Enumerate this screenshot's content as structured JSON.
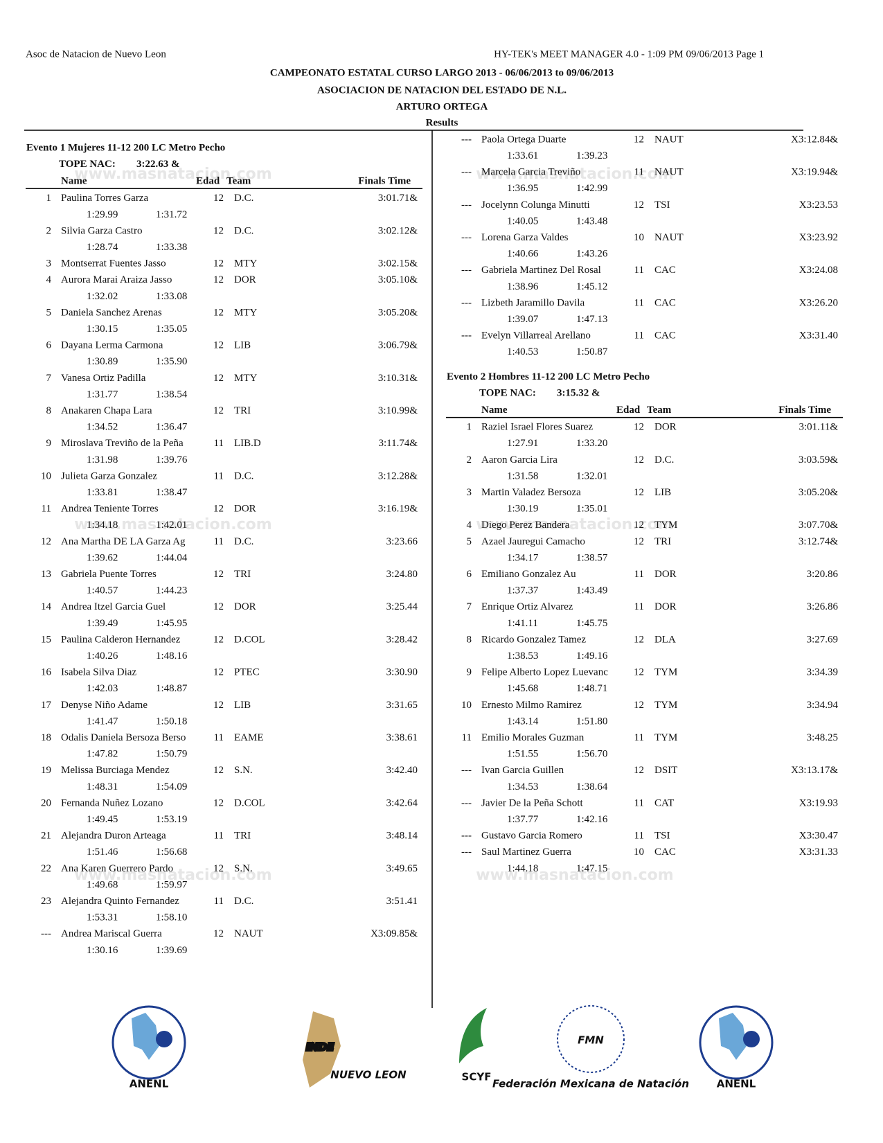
{
  "header": {
    "left": "Asoc de Natacion de Nuevo Leon",
    "right": "HY-TEK's MEET MANAGER 4.0 - 1:09 PM  09/06/2013  Page 1",
    "title": "CAMPEONATO ESTATAL CURSO LARGO 2013 - 06/06/2013 to 09/06/2013",
    "subtitle": "ASOCIACION DE NATACION DEL ESTADO DE N.L.",
    "venue": "ARTURO ORTEGA",
    "section": "Results"
  },
  "watermark": "www.masnatacion.com",
  "columns": {
    "name": "Name",
    "age": "Edad",
    "team": "Team",
    "time": "Finals Time"
  },
  "events": [
    {
      "title": "Evento 1  Mujeres 11-12 200 LC Metro Pecho",
      "tope_label": "TOPE NAC:",
      "tope_value": "3:22.63  &",
      "rows": [
        {
          "place": "1",
          "name": "Paulina Torres Garza",
          "age": "12",
          "team": "D.C.",
          "time": "3:01.71&",
          "splits": [
            "1:29.99",
            "1:31.72"
          ]
        },
        {
          "place": "2",
          "name": "Silvia Garza Castro",
          "age": "12",
          "team": "D.C.",
          "time": "3:02.12&",
          "splits": [
            "1:28.74",
            "1:33.38"
          ]
        },
        {
          "place": "3",
          "name": "Montserrat Fuentes Jasso",
          "age": "12",
          "team": "MTY",
          "time": "3:02.15&",
          "splits": []
        },
        {
          "place": "4",
          "name": "Aurora Marai Araiza Jasso",
          "age": "12",
          "team": "DOR",
          "time": "3:05.10&",
          "splits": [
            "1:32.02",
            "1:33.08"
          ]
        },
        {
          "place": "5",
          "name": "Daniela Sanchez Arenas",
          "age": "12",
          "team": "MTY",
          "time": "3:05.20&",
          "splits": [
            "1:30.15",
            "1:35.05"
          ]
        },
        {
          "place": "6",
          "name": "Dayana Lerma Carmona",
          "age": "12",
          "team": "LIB",
          "time": "3:06.79&",
          "splits": [
            "1:30.89",
            "1:35.90"
          ]
        },
        {
          "place": "7",
          "name": "Vanesa Ortiz Padilla",
          "age": "12",
          "team": "MTY",
          "time": "3:10.31&",
          "splits": [
            "1:31.77",
            "1:38.54"
          ]
        },
        {
          "place": "8",
          "name": "Anakaren Chapa Lara",
          "age": "12",
          "team": "TRI",
          "time": "3:10.99&",
          "splits": [
            "1:34.52",
            "1:36.47"
          ]
        },
        {
          "place": "9",
          "name": "Miroslava Treviño de la Peña",
          "age": "11",
          "team": "LIB.D",
          "time": "3:11.74&",
          "splits": [
            "1:31.98",
            "1:39.76"
          ]
        },
        {
          "place": "10",
          "name": "Julieta Garza Gonzalez",
          "age": "11",
          "team": "D.C.",
          "time": "3:12.28&",
          "splits": [
            "1:33.81",
            "1:38.47"
          ]
        },
        {
          "place": "11",
          "name": "Andrea Teniente Torres",
          "age": "12",
          "team": "DOR",
          "time": "3:16.19&",
          "splits": [
            "1:34.18",
            "1:42.01"
          ]
        },
        {
          "place": "12",
          "name": "Ana Martha DE LA Garza Ag",
          "age": "11",
          "team": "D.C.",
          "time": "3:23.66",
          "splits": [
            "1:39.62",
            "1:44.04"
          ]
        },
        {
          "place": "13",
          "name": "Gabriela Puente Torres",
          "age": "12",
          "team": "TRI",
          "time": "3:24.80",
          "splits": [
            "1:40.57",
            "1:44.23"
          ]
        },
        {
          "place": "14",
          "name": "Andrea Itzel Garcia Guel",
          "age": "12",
          "team": "DOR",
          "time": "3:25.44",
          "splits": [
            "1:39.49",
            "1:45.95"
          ]
        },
        {
          "place": "15",
          "name": "Paulina Calderon Hernandez",
          "age": "12",
          "team": "D.COL",
          "time": "3:28.42",
          "splits": [
            "1:40.26",
            "1:48.16"
          ]
        },
        {
          "place": "16",
          "name": "Isabela Silva Diaz",
          "age": "12",
          "team": "PTEC",
          "time": "3:30.90",
          "splits": [
            "1:42.03",
            "1:48.87"
          ]
        },
        {
          "place": "17",
          "name": "Denyse Niño Adame",
          "age": "12",
          "team": "LIB",
          "time": "3:31.65",
          "splits": [
            "1:41.47",
            "1:50.18"
          ]
        },
        {
          "place": "18",
          "name": "Odalis Daniela Bersoza Berso",
          "age": "11",
          "team": "EAME",
          "time": "3:38.61",
          "splits": [
            "1:47.82",
            "1:50.79"
          ]
        },
        {
          "place": "19",
          "name": "Melissa Burciaga Mendez",
          "age": "12",
          "team": "S.N.",
          "time": "3:42.40",
          "splits": [
            "1:48.31",
            "1:54.09"
          ]
        },
        {
          "place": "20",
          "name": "Fernanda Nuñez Lozano",
          "age": "12",
          "team": "D.COL",
          "time": "3:42.64",
          "splits": [
            "1:49.45",
            "1:53.19"
          ]
        },
        {
          "place": "21",
          "name": "Alejandra Duron Arteaga",
          "age": "11",
          "team": "TRI",
          "time": "3:48.14",
          "splits": [
            "1:51.46",
            "1:56.68"
          ]
        },
        {
          "place": "22",
          "name": "Ana Karen Guerrero Pardo",
          "age": "12",
          "team": "S.N.",
          "time": "3:49.65",
          "splits": [
            "1:49.68",
            "1:59.97"
          ]
        },
        {
          "place": "23",
          "name": "Alejandra Quinto Fernandez",
          "age": "11",
          "team": "D.C.",
          "time": "3:51.41",
          "splits": [
            "1:53.31",
            "1:58.10"
          ]
        },
        {
          "place": "---",
          "name": "Andrea Mariscal Guerra",
          "age": "12",
          "team": "NAUT",
          "time": "X3:09.85&",
          "splits": [
            "1:30.16",
            "1:39.69"
          ]
        },
        {
          "place": "---",
          "name": "Paola Ortega Duarte",
          "age": "12",
          "team": "NAUT",
          "time": "X3:12.84&",
          "splits": [
            "1:33.61",
            "1:39.23"
          ]
        },
        {
          "place": "---",
          "name": "Marcela Garcia Treviño",
          "age": "11",
          "team": "NAUT",
          "time": "X3:19.94&",
          "splits": [
            "1:36.95",
            "1:42.99"
          ]
        },
        {
          "place": "---",
          "name": "Jocelynn Colunga Minutti",
          "age": "12",
          "team": "TSI",
          "time": "X3:23.53",
          "splits": [
            "1:40.05",
            "1:43.48"
          ]
        },
        {
          "place": "---",
          "name": "Lorena Garza Valdes",
          "age": "10",
          "team": "NAUT",
          "time": "X3:23.92",
          "splits": [
            "1:40.66",
            "1:43.26"
          ]
        },
        {
          "place": "---",
          "name": "Gabriela Martinez Del Rosal",
          "age": "11",
          "team": "CAC",
          "time": "X3:24.08",
          "splits": [
            "1:38.96",
            "1:45.12"
          ]
        },
        {
          "place": "---",
          "name": "Lizbeth Jaramillo Davila",
          "age": "11",
          "team": "CAC",
          "time": "X3:26.20",
          "splits": [
            "1:39.07",
            "1:47.13"
          ]
        },
        {
          "place": "---",
          "name": "Evelyn Villarreal Arellano",
          "age": "11",
          "team": "CAC",
          "time": "X3:31.40",
          "splits": [
            "1:40.53",
            "1:50.87"
          ]
        }
      ]
    },
    {
      "title": "Evento 2  Hombres 11-12 200 LC Metro Pecho",
      "tope_label": "TOPE NAC:",
      "tope_value": "3:15.32  &",
      "rows": [
        {
          "place": "1",
          "name": "Raziel Israel Flores Suarez",
          "age": "12",
          "team": "DOR",
          "time": "3:01.11&",
          "splits": [
            "1:27.91",
            "1:33.20"
          ]
        },
        {
          "place": "2",
          "name": "Aaron Garcia Lira",
          "age": "12",
          "team": "D.C.",
          "time": "3:03.59&",
          "splits": [
            "1:31.58",
            "1:32.01"
          ]
        },
        {
          "place": "3",
          "name": "Martin Valadez Bersoza",
          "age": "12",
          "team": "LIB",
          "time": "3:05.20&",
          "splits": [
            "1:30.19",
            "1:35.01"
          ]
        },
        {
          "place": "4",
          "name": "Diego Perez Bandera",
          "age": "12",
          "team": "TYM",
          "time": "3:07.70&",
          "splits": []
        },
        {
          "place": "5",
          "name": "Azael Jauregui Camacho",
          "age": "12",
          "team": "TRI",
          "time": "3:12.74&",
          "splits": [
            "1:34.17",
            "1:38.57"
          ]
        },
        {
          "place": "6",
          "name": "Emiliano Gonzalez Au",
          "age": "11",
          "team": "DOR",
          "time": "3:20.86",
          "splits": [
            "1:37.37",
            "1:43.49"
          ]
        },
        {
          "place": "7",
          "name": "Enrique Ortiz Alvarez",
          "age": "11",
          "team": "DOR",
          "time": "3:26.86",
          "splits": [
            "1:41.11",
            "1:45.75"
          ]
        },
        {
          "place": "8",
          "name": "Ricardo Gonzalez Tamez",
          "age": "12",
          "team": "DLA",
          "time": "3:27.69",
          "splits": [
            "1:38.53",
            "1:49.16"
          ]
        },
        {
          "place": "9",
          "name": "Felipe Alberto Lopez Luevanc",
          "age": "12",
          "team": "TYM",
          "time": "3:34.39",
          "splits": [
            "1:45.68",
            "1:48.71"
          ]
        },
        {
          "place": "10",
          "name": "Ernesto Milmo Ramirez",
          "age": "12",
          "team": "TYM",
          "time": "3:34.94",
          "splits": [
            "1:43.14",
            "1:51.80"
          ]
        },
        {
          "place": "11",
          "name": "Emilio Morales Guzman",
          "age": "11",
          "team": "TYM",
          "time": "3:48.25",
          "splits": [
            "1:51.55",
            "1:56.70"
          ]
        },
        {
          "place": "---",
          "name": "Ivan Garcia Guillen",
          "age": "12",
          "team": "DSIT",
          "time": "X3:13.17&",
          "splits": [
            "1:34.53",
            "1:38.64"
          ]
        },
        {
          "place": "---",
          "name": "Javier De la Peña Schott",
          "age": "11",
          "team": "CAT",
          "time": "X3:19.93",
          "splits": [
            "1:37.77",
            "1:42.16"
          ]
        },
        {
          "place": "---",
          "name": "Gustavo Garcia Romero",
          "age": "11",
          "team": "TSI",
          "time": "X3:30.47",
          "splits": []
        },
        {
          "place": "---",
          "name": "Saul Martinez Guerra",
          "age": "10",
          "team": "CAC",
          "time": "X3:31.33",
          "splits": [
            "1:44.18",
            "1:47.15"
          ]
        }
      ]
    }
  ],
  "logos": [
    {
      "text": "ANENL"
    },
    {
      "text": "INDE",
      "sub": "NUEVO LEON"
    },
    {
      "text": "SCYF"
    },
    {
      "text": "FMN",
      "sub": "Federación Mexicana de Natación"
    },
    {
      "text": "ANENL"
    }
  ]
}
